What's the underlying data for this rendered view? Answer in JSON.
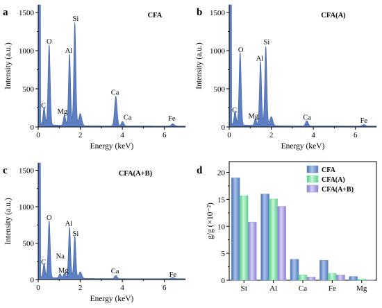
{
  "chart_data": [
    {
      "type": "area",
      "panel": "a",
      "title": "CFA",
      "xlabel": "Energy (keV)",
      "ylabel": "Intensity (a.u.)",
      "xlim": [
        0,
        7
      ],
      "ylim": [
        0,
        1600
      ],
      "x_ticks": [
        "0",
        "2",
        "4",
        "6"
      ],
      "y_ticks": [
        "0",
        "500",
        "1000",
        "1500"
      ],
      "peaks": [
        {
          "label": "C",
          "x": 0.28,
          "y": 230,
          "width": 0.05
        },
        {
          "label": "O",
          "x": 0.52,
          "y": 1050,
          "width": 0.05
        },
        {
          "label": "Mg",
          "x": 1.25,
          "y": 140,
          "width": 0.05
        },
        {
          "label": "Al",
          "x": 1.49,
          "y": 940,
          "width": 0.05
        },
        {
          "label": "Si",
          "x": 1.74,
          "y": 1350,
          "width": 0.05
        },
        {
          "label": "",
          "x": 2.0,
          "y": 160,
          "width": 0.07
        },
        {
          "label": "Ca",
          "x": 3.69,
          "y": 390,
          "width": 0.06
        },
        {
          "label": "Ca",
          "x": 4.01,
          "y": 60,
          "width": 0.06
        },
        {
          "label": "Fe",
          "x": 6.4,
          "y": 30,
          "width": 0.07
        }
      ],
      "peak_labels": [
        {
          "text": "C",
          "x": 0.25,
          "y": 250
        },
        {
          "text": "O",
          "x": 0.52,
          "y": 1090
        },
        {
          "text": "Mg",
          "x": 1.15,
          "y": 175
        },
        {
          "text": "Al",
          "x": 1.45,
          "y": 975
        },
        {
          "text": "Si",
          "x": 1.78,
          "y": 1390
        },
        {
          "text": "Ca",
          "x": 3.65,
          "y": 425
        },
        {
          "text": "Ca",
          "x": 4.25,
          "y": 95
        },
        {
          "text": "Fe",
          "x": 6.35,
          "y": 80
        }
      ]
    },
    {
      "type": "area",
      "panel": "b",
      "title": "CFA(A)",
      "xlabel": "Energy (keV)",
      "ylabel": "Intensity (a.u.)",
      "xlim": [
        0,
        7
      ],
      "ylim": [
        0,
        1600
      ],
      "x_ticks": [
        "0",
        "2",
        "4",
        "6"
      ],
      "y_ticks": [
        "0",
        "500",
        "1000",
        "1500"
      ],
      "peaks": [
        {
          "label": "C",
          "x": 0.28,
          "y": 180,
          "width": 0.05
        },
        {
          "label": "O",
          "x": 0.52,
          "y": 950,
          "width": 0.05
        },
        {
          "label": "Mg",
          "x": 1.25,
          "y": 90,
          "width": 0.05
        },
        {
          "label": "Al",
          "x": 1.49,
          "y": 840,
          "width": 0.05
        },
        {
          "label": "Si",
          "x": 1.74,
          "y": 1040,
          "width": 0.05
        },
        {
          "label": "",
          "x": 2.0,
          "y": 120,
          "width": 0.07
        },
        {
          "label": "Ca",
          "x": 3.69,
          "y": 70,
          "width": 0.06
        },
        {
          "label": "Fe",
          "x": 6.4,
          "y": 20,
          "width": 0.07
        }
      ],
      "peak_labels": [
        {
          "text": "C",
          "x": 0.25,
          "y": 190
        },
        {
          "text": "O",
          "x": 0.55,
          "y": 980
        },
        {
          "text": "Mg",
          "x": 1.15,
          "y": 115
        },
        {
          "text": "Al",
          "x": 1.45,
          "y": 870
        },
        {
          "text": "Si",
          "x": 1.78,
          "y": 1080
        },
        {
          "text": "Ca",
          "x": 3.7,
          "y": 95
        },
        {
          "text": "Fe",
          "x": 6.4,
          "y": 55
        }
      ]
    },
    {
      "type": "area",
      "panel": "c",
      "title": "CFA(A+B)",
      "xlabel": "Energy (keV)",
      "ylabel": "Intensity (a.u.)",
      "xlim": [
        0,
        7
      ],
      "ylim": [
        0,
        1600
      ],
      "x_ticks": [
        "0",
        "2",
        "4",
        "6"
      ],
      "y_ticks": [
        "0",
        "500",
        "1000",
        "1500"
      ],
      "peaks": [
        {
          "label": "C",
          "x": 0.28,
          "y": 190,
          "width": 0.05
        },
        {
          "label": "O",
          "x": 0.52,
          "y": 780,
          "width": 0.05
        },
        {
          "label": "Na",
          "x": 1.04,
          "y": 60,
          "width": 0.05
        },
        {
          "label": "Mg",
          "x": 1.25,
          "y": 70,
          "width": 0.05
        },
        {
          "label": "Al",
          "x": 1.49,
          "y": 700,
          "width": 0.05
        },
        {
          "label": "Si",
          "x": 1.74,
          "y": 580,
          "width": 0.05
        },
        {
          "label": "",
          "x": 2.0,
          "y": 90,
          "width": 0.07
        },
        {
          "label": "Ca",
          "x": 3.69,
          "y": 45,
          "width": 0.06
        },
        {
          "label": "Fe",
          "x": 6.4,
          "y": 15,
          "width": 0.07
        }
      ],
      "peak_labels": [
        {
          "text": "C",
          "x": 0.25,
          "y": 210
        },
        {
          "text": "O",
          "x": 0.52,
          "y": 820
        },
        {
          "text": "Na",
          "x": 1.05,
          "y": 290
        },
        {
          "text": "Mg",
          "x": 1.2,
          "y": 95
        },
        {
          "text": "Al",
          "x": 1.45,
          "y": 740
        },
        {
          "text": "Si",
          "x": 1.78,
          "y": 600
        },
        {
          "text": "Ca",
          "x": 3.65,
          "y": 85
        },
        {
          "text": "Fe",
          "x": 6.4,
          "y": 40
        }
      ]
    },
    {
      "type": "bar",
      "panel": "d",
      "categories": [
        "Si",
        "Al",
        "Ca",
        "Fe",
        "Mg"
      ],
      "ylabel": "g/g (×10⁻²)",
      "ylim": [
        0,
        22
      ],
      "y_ticks": [
        "0",
        "5",
        "10",
        "15",
        "20"
      ],
      "legend_position": "top-right",
      "series": [
        {
          "name": "CFA",
          "values": [
            19.0,
            16.0,
            3.9,
            3.7,
            0.7
          ],
          "color": "#6f95cf"
        },
        {
          "name": "CFA(A)",
          "values": [
            15.7,
            15.1,
            1.0,
            1.3,
            0.25
          ],
          "color": "#8ee3ac"
        },
        {
          "name": "CFA(A+B)",
          "values": [
            10.8,
            13.7,
            0.6,
            1.0,
            0.1
          ],
          "color": "#9f98dc"
        }
      ]
    }
  ],
  "colors": {
    "spectrum_fill": "#5b7fc2",
    "spectrum_edge": "#3f5f9e"
  }
}
